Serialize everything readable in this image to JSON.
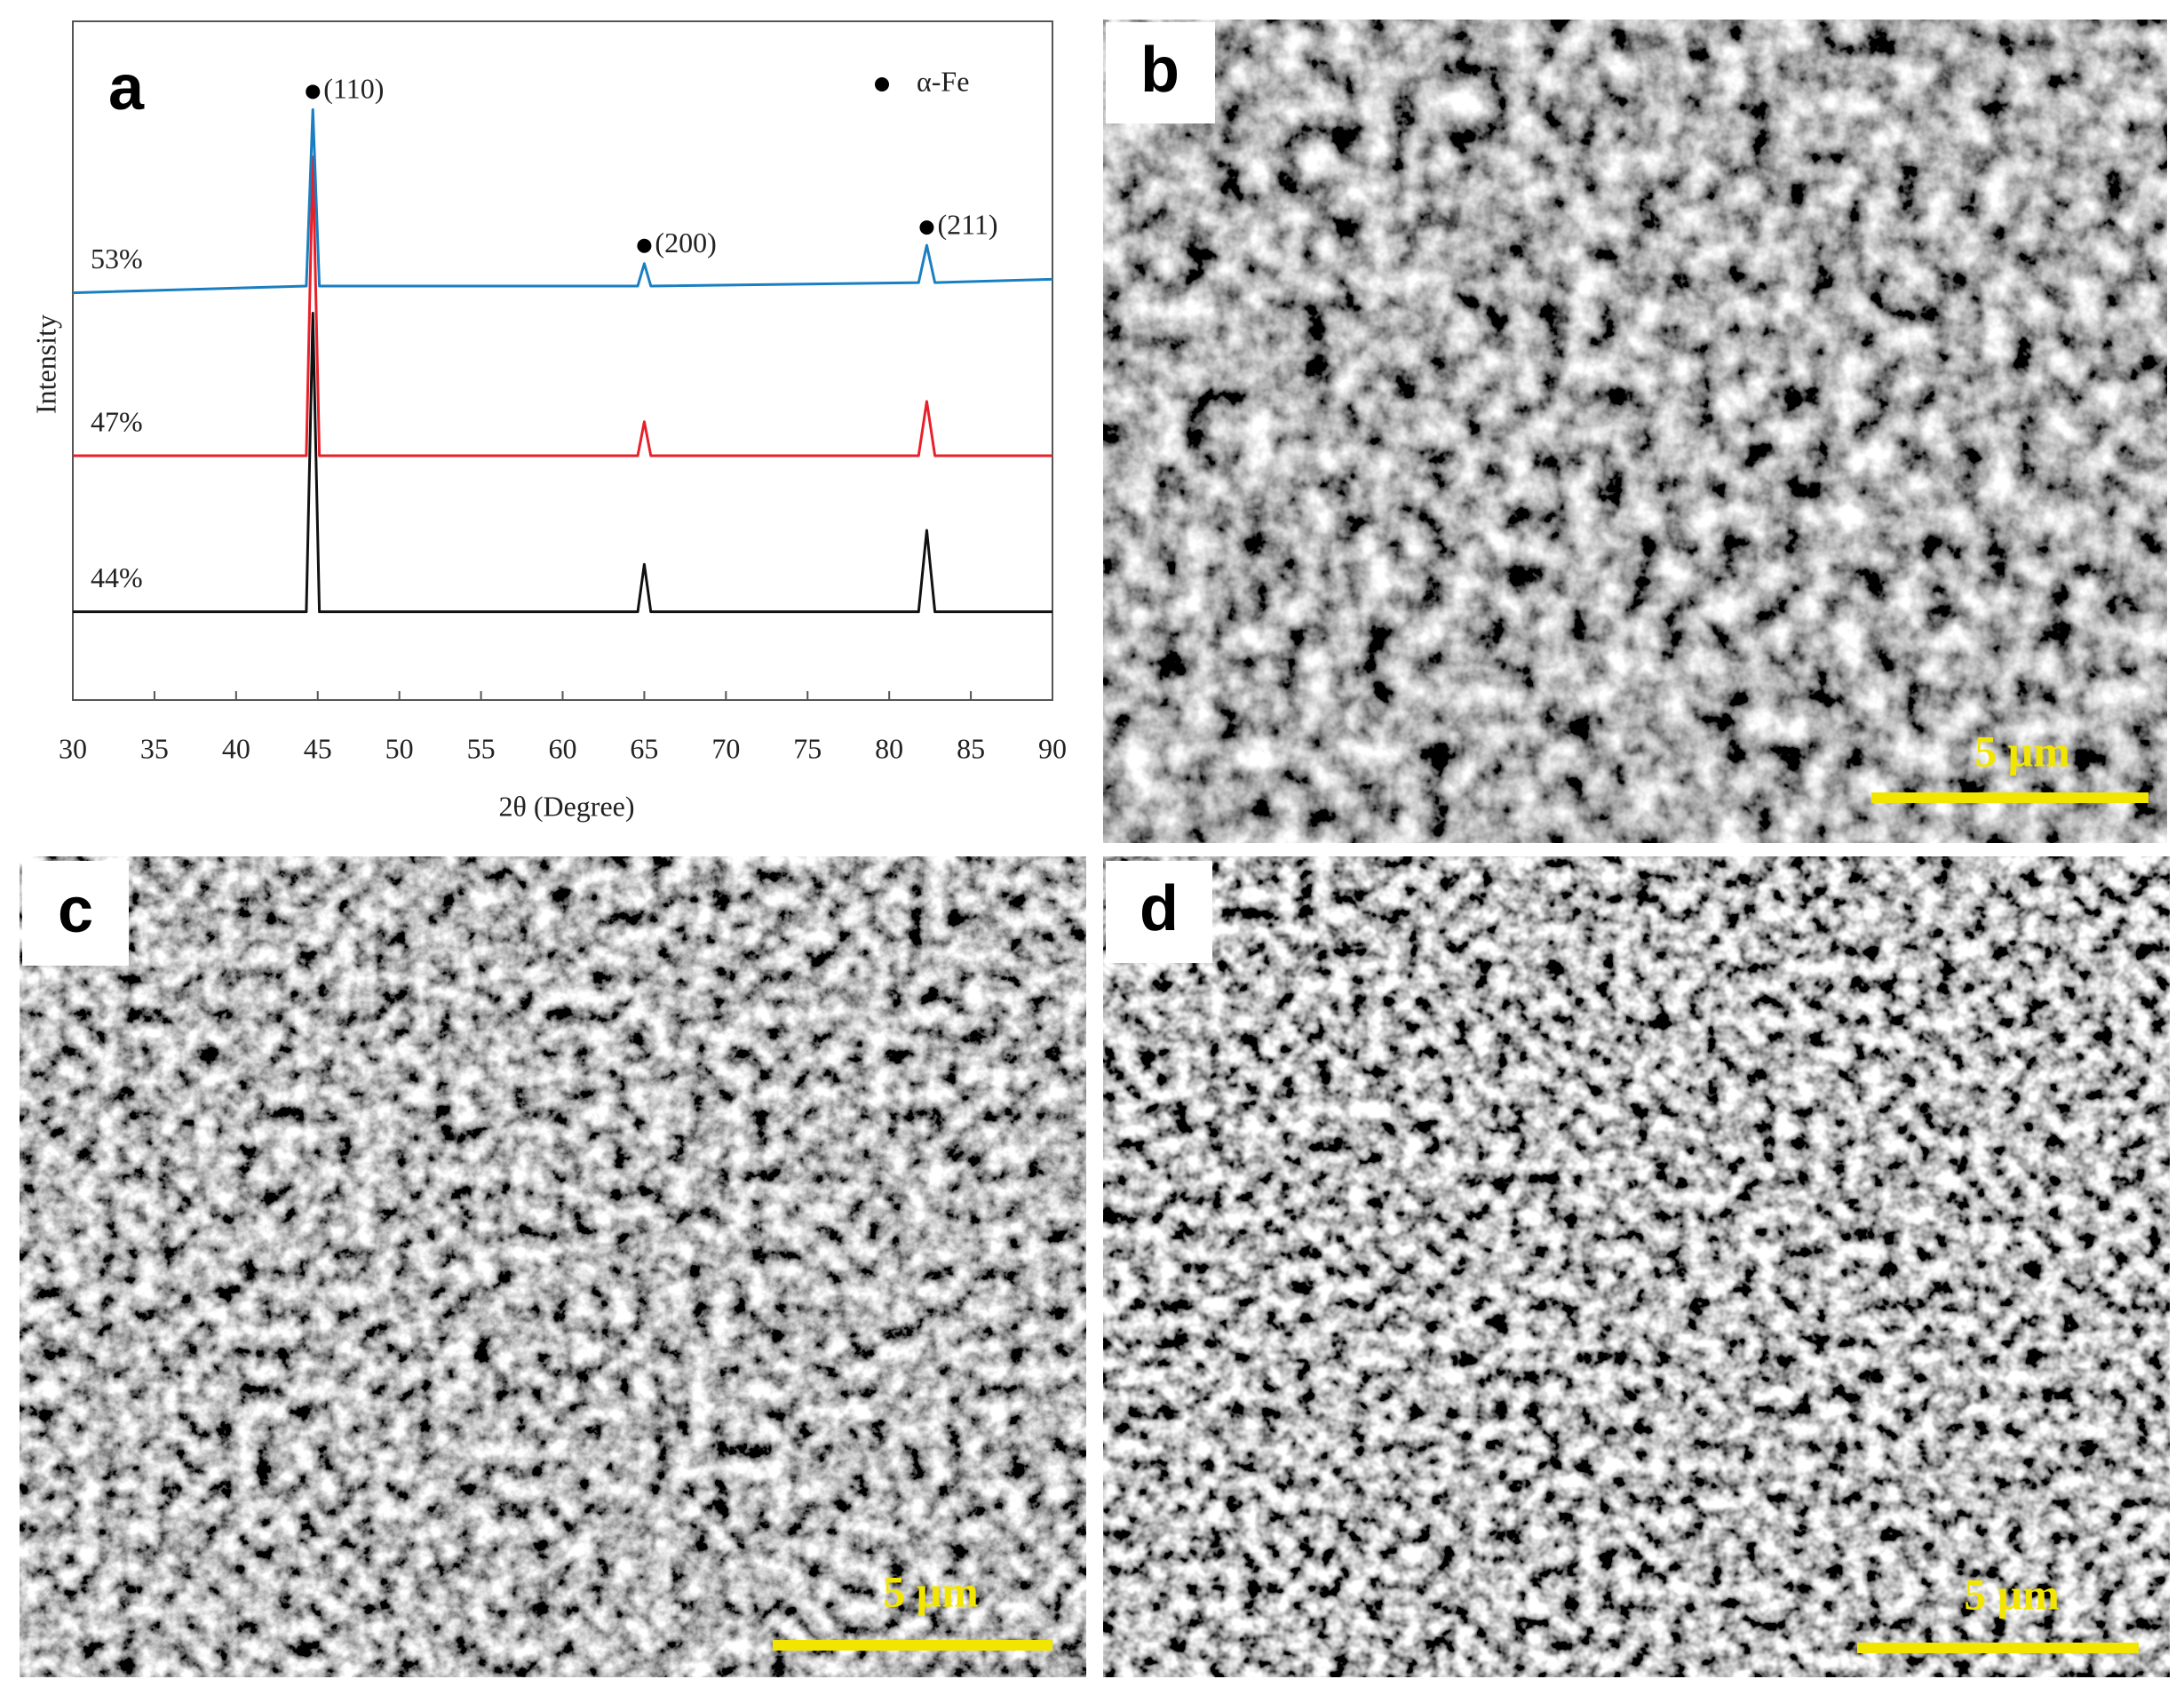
{
  "chart_data": {
    "type": "line",
    "panel_label": "a",
    "xlabel": "2θ (Degree)",
    "ylabel": "Intensity",
    "xlim": [
      30,
      90
    ],
    "xticks": [
      30,
      35,
      40,
      45,
      50,
      55,
      60,
      65,
      70,
      75,
      80,
      85,
      90
    ],
    "ylim": [
      0,
      100
    ],
    "x": [
      30,
      44.3,
      44.7,
      45.1,
      64.6,
      65.0,
      65.4,
      81.8,
      82.3,
      82.8,
      90
    ],
    "series": [
      {
        "name": "53%",
        "color": "#1a7fc1",
        "values": [
          60,
          61,
          87,
          61,
          61,
          64.3,
          61,
          61.5,
          67,
          61.5,
          62
        ]
      },
      {
        "name": "47%",
        "color": "#e8202a",
        "values": [
          36,
          36,
          80,
          36,
          36,
          41,
          36,
          36,
          44,
          36,
          36
        ]
      },
      {
        "name": "44%",
        "color": "#111111",
        "values": [
          13,
          13,
          57,
          13,
          13,
          20,
          13,
          13,
          25,
          13,
          13
        ]
      }
    ],
    "peak_labels": [
      "(110)",
      "(200)",
      "(211)"
    ],
    "legend": "α-Fe"
  },
  "panels": [
    {
      "label": "b",
      "scale_bar": "5 μm"
    },
    {
      "label": "c",
      "scale_bar": "5 μm"
    },
    {
      "label": "d",
      "scale_bar": "5 μm"
    }
  ]
}
